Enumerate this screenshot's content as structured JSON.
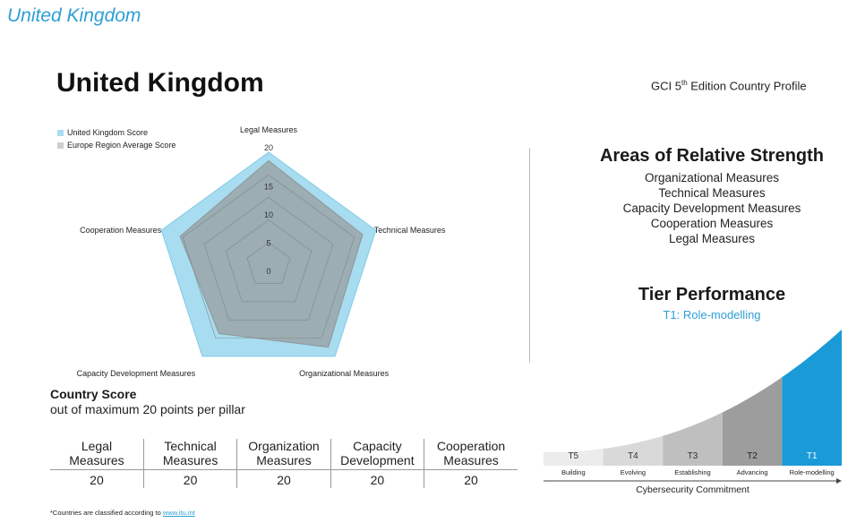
{
  "header": {
    "title": "United Kingdom"
  },
  "profile": {
    "country": "United Kingdom",
    "edition_prefix": "GCI 5",
    "edition_sup": "th",
    "edition_suffix": " Edition Country Profile"
  },
  "legend": [
    {
      "label": "United Kingdom Score",
      "color": "#a8dcf0"
    },
    {
      "label": "Europe Region Average Score",
      "color": "#cfcfcf"
    }
  ],
  "chart_data": {
    "type": "radar",
    "axes": [
      "Legal Measures",
      "Technical Measures",
      "Organizational Measures",
      "Capacity Development Measures",
      "Cooperation Measures"
    ],
    "rmax": 20,
    "ticks": [
      0,
      5,
      10,
      15,
      20
    ],
    "series": [
      {
        "name": "United Kingdom Score",
        "color": "#a8dcf0",
        "values": [
          20,
          20,
          20,
          20,
          20
        ]
      },
      {
        "name": "Europe Region Average Score",
        "color": "#9aa5a8",
        "values": [
          18.5,
          17.5,
          18.0,
          15.0,
          16.5
        ]
      }
    ]
  },
  "strength": {
    "title": "Areas of Relative Strength",
    "items": [
      "Organizational Measures",
      "Technical Measures",
      "Capacity Development Measures",
      "Cooperation Measures",
      "Legal Measures"
    ]
  },
  "tier": {
    "title": "Tier Performance",
    "subtitle": "T1: Role-modelling",
    "tiers": [
      {
        "code": "T5",
        "label": "Building"
      },
      {
        "code": "T4",
        "label": "Evolving"
      },
      {
        "code": "T3",
        "label": "Establishing"
      },
      {
        "code": "T2",
        "label": "Advancing"
      },
      {
        "code": "T1",
        "label": "Role-modelling"
      }
    ],
    "axis_label": "Cybersecurity Commitment",
    "highlight_color": "#1a9bd7"
  },
  "country_score": {
    "title": "Country Score",
    "subtitle": "out of maximum 20 points per pillar",
    "columns": [
      {
        "line1": "Legal",
        "line2": "Measures",
        "value": "20"
      },
      {
        "line1": "Technical",
        "line2": "Measures",
        "value": "20"
      },
      {
        "line1": "Organization",
        "line2": "Measures",
        "value": "20"
      },
      {
        "line1": "Capacity",
        "line2": "Development",
        "value": "20"
      },
      {
        "line1": "Cooperation",
        "line2": "Measures",
        "value": "20"
      }
    ]
  },
  "footnote": {
    "text": "*Countries are classified according to ",
    "link": "www.itu.int"
  }
}
